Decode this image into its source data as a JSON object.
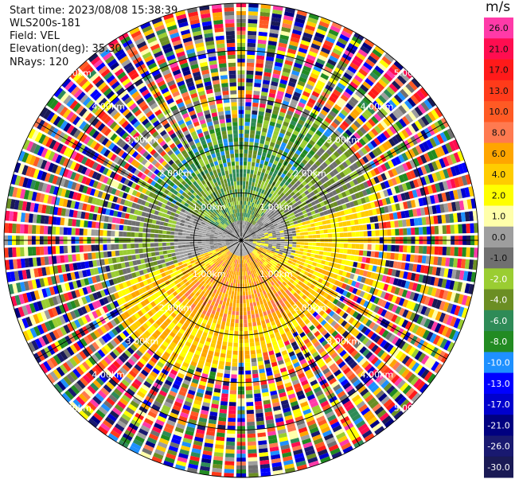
{
  "info": {
    "start_time": "Start time: 2023/08/08 15:38:39",
    "instrument": "WLS200s-181",
    "field": "Field: VEL",
    "elevation": "Elevation(deg): 35.30",
    "nrays": "NRays: 120"
  },
  "colorbar": {
    "unit": "m/s",
    "ticks": [
      "26.0",
      "21.0",
      "17.0",
      "13.0",
      "10.0",
      "8.0",
      "6.0",
      "4.0",
      "2.0",
      "1.0",
      "0.0",
      "-1.0",
      "-2.0",
      "-4.0",
      "-6.0",
      "-8.0",
      "-10.0",
      "-13.0",
      "-17.0",
      "-21.0",
      "-26.0",
      "-30.0"
    ],
    "colors": [
      "#ff3aa8",
      "#ff0d50",
      "#ff1a1a",
      "#ff3b1a",
      "#ff5a24",
      "#ff7a50",
      "#ffa500",
      "#ffcc00",
      "#ffff00",
      "#ffffaa",
      "#9e9e9e",
      "#707070",
      "#9acd32",
      "#6b8e23",
      "#2e8b57",
      "#228b22",
      "#1e90ff",
      "#0000ff",
      "#0000cd",
      "#000080",
      "#191970",
      "#1a1a55"
    ]
  },
  "range_labels": [
    "1.00km",
    "2.00km",
    "3.00km",
    "4.00km",
    "5.00km"
  ],
  "chart_data": {
    "type": "ppi",
    "field": "VEL",
    "units": "m/s",
    "nrays": 120,
    "elevation_deg": 35.3,
    "range_rings_km": [
      1,
      2,
      3,
      4,
      5
    ],
    "max_range_km": 5.0,
    "color_scale_ms": [
      -30.0,
      26.0
    ]
  }
}
